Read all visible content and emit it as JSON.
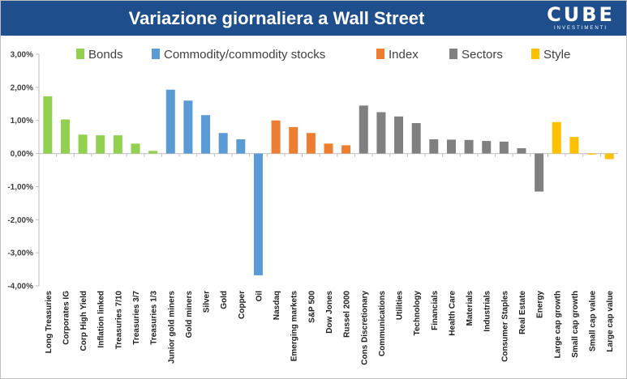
{
  "header": {
    "title": "Variazione giornaliera a Wall Street",
    "logo_main": "CUBE",
    "logo_sub": "INVESTIMENTI",
    "background": "#1f4e8c"
  },
  "chart_data": {
    "type": "bar",
    "title": "Variazione giornaliera a Wall Street",
    "ylim": [
      -4,
      3
    ],
    "yticks": [
      3,
      2,
      1,
      0,
      -1,
      -2,
      -3,
      -4
    ],
    "ytick_labels": [
      "3,00%",
      "2,00%",
      "1,00%",
      "0,00%",
      "-1,00%",
      "-2,00%",
      "-3,00%",
      "-4,00%"
    ],
    "grid": false,
    "legend_placement": "top",
    "groups": [
      {
        "name": "Bonds",
        "color": "#92d050"
      },
      {
        "name": "Commodity/commodity stocks",
        "color": "#5b9bd5"
      },
      {
        "name": "Index",
        "color": "#ed7d31"
      },
      {
        "name": "Sectors",
        "color": "#808080"
      },
      {
        "name": "Style",
        "color": "#ffc000"
      }
    ],
    "categories": [
      "Long Treasuries",
      "Corporates IG",
      "Corp High Yield",
      "Inflation linked",
      "Treasuries 7/10",
      "Treasuries 3/7",
      "Treasuries 1/3",
      "Junior gold miners",
      "Gold miners",
      "Silver",
      "Gold",
      "Copper",
      "Oil",
      "Nasdaq",
      "Emerging markets",
      "S&P 500",
      "Dow Jones",
      "Russel 2000",
      "Cons Discretionary",
      "Communications",
      "Utilities",
      "Technology",
      "Financials",
      "Health Care",
      "Materials",
      "Industrials",
      "Consumer Staples",
      "Real Estate",
      "Energy",
      "Large cap growth",
      "Small cap growth",
      "Small cap value",
      "Large cap value"
    ],
    "values": [
      1.73,
      1.03,
      0.57,
      0.55,
      0.55,
      0.3,
      0.08,
      1.93,
      1.6,
      1.16,
      0.62,
      0.43,
      -3.68,
      1.0,
      0.8,
      0.62,
      0.3,
      0.25,
      1.45,
      1.25,
      1.12,
      0.92,
      0.43,
      0.42,
      0.41,
      0.38,
      0.36,
      0.16,
      -1.15,
      0.95,
      0.5,
      -0.03,
      -0.17
    ],
    "category_group": [
      0,
      0,
      0,
      0,
      0,
      0,
      0,
      1,
      1,
      1,
      1,
      1,
      1,
      2,
      2,
      2,
      2,
      2,
      3,
      3,
      3,
      3,
      3,
      3,
      3,
      3,
      3,
      3,
      3,
      4,
      4,
      4,
      4
    ]
  }
}
